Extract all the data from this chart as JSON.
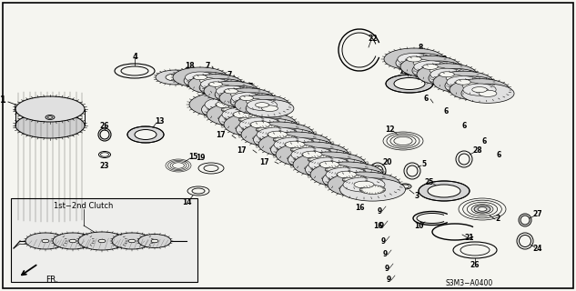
{
  "bg_color": "#f5f5f0",
  "border_color": "#000000",
  "diagram_code": "S3M3−A0400",
  "label_text": "1st−2nd Clutch",
  "fr_label": "FR.",
  "figsize": [
    6.33,
    3.2
  ],
  "dpi": 100
}
